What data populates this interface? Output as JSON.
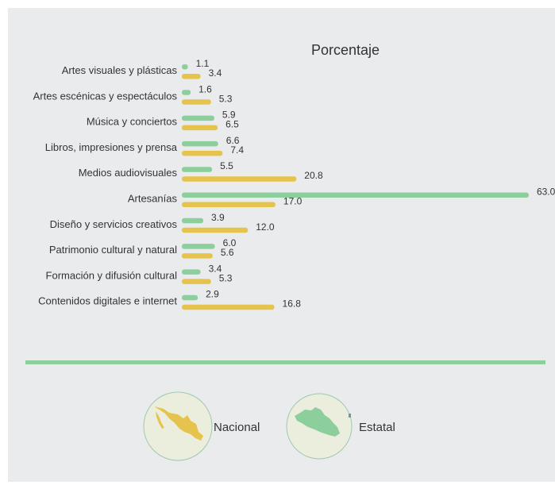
{
  "chart_data": {
    "type": "bar",
    "orientation": "horizontal",
    "title": "Porcentaje",
    "categories": [
      "Artes visuales y plásticas",
      "Artes escénicas y espectáculos",
      "Música y conciertos",
      "Libros, impresiones y prensa",
      "Medios audiovisuales",
      "Artesanías",
      "Diseño y servicios creativos",
      "Patrimonio cultural y natural",
      "Formación y difusión cultural",
      "Contenidos digitales e internet"
    ],
    "series": [
      {
        "name": "Estatal",
        "color": "#8ccf9c",
        "values": [
          1.1,
          1.6,
          5.9,
          6.6,
          5.5,
          63.0,
          3.9,
          6.0,
          3.4,
          2.9
        ]
      },
      {
        "name": "Nacional",
        "color": "#e6c34c",
        "values": [
          3.4,
          5.3,
          6.5,
          7.4,
          20.8,
          17.0,
          12.0,
          5.6,
          5.3,
          16.8
        ]
      }
    ],
    "xlim": [
      0,
      63.0
    ],
    "grid": false,
    "legend": "bottom"
  },
  "legend": {
    "items": [
      {
        "label": "Nacional",
        "icon": "mexico-map-icon",
        "color": "#e6c34c"
      },
      {
        "label": "Estatal",
        "icon": "state-map-icon",
        "color": "#8ccf9c"
      }
    ]
  },
  "colors": {
    "divider": "#8ccf9c",
    "circle_fill": "#eceedd",
    "circle_stroke": "#9fc8b0"
  }
}
